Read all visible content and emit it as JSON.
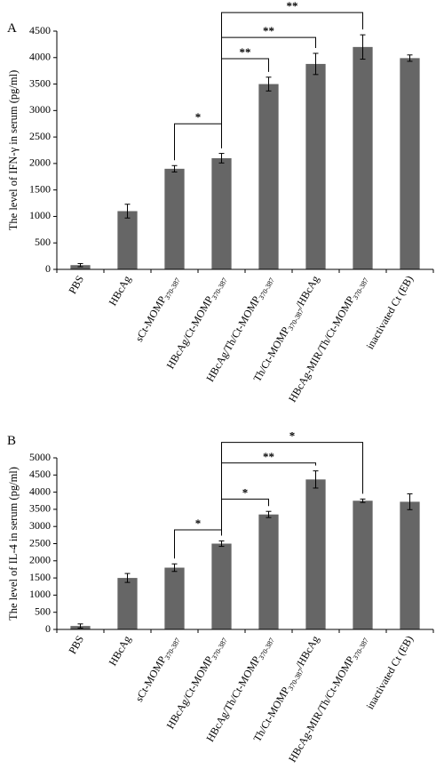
{
  "chart_data": [
    {
      "panel": "A",
      "type": "bar",
      "ylabel": "The level of IFN-γ in serum (pg/ml)",
      "ylim": [
        0,
        4500
      ],
      "yticks": [
        0,
        500,
        1000,
        1500,
        2000,
        2500,
        3000,
        3500,
        4000,
        4500
      ],
      "categories": [
        {
          "main": "PBS",
          "sub": ""
        },
        {
          "main": "HBcAg",
          "sub": ""
        },
        {
          "main": "sCt-MOMP",
          "sub": "370-387"
        },
        {
          "main": "HBcAg/Ct-MOMP",
          "sub": "370-387"
        },
        {
          "main": "HBcAg/Th/Ct-MOMP",
          "sub": "370-387"
        },
        {
          "main": "Th/Ct-MOMP",
          "sub": "370-387",
          "suffix": "/HBcAg"
        },
        {
          "main": "HBcAg-MIR/Th/Ct-MOMP",
          "sub": "370-387"
        },
        {
          "main": "inactivated Ct (EB)",
          "sub": ""
        }
      ],
      "values": [
        80,
        1100,
        1900,
        2100,
        3500,
        3880,
        4200,
        3990
      ],
      "errors": [
        30,
        130,
        60,
        90,
        130,
        200,
        230,
        60
      ],
      "significance": [
        {
          "from": 2,
          "to": 3,
          "label": "*",
          "y": 2750
        },
        {
          "from": 3,
          "to": 4,
          "label": "**",
          "y": 3980
        },
        {
          "from": 3,
          "to": 5,
          "label": "**",
          "y": 4380
        },
        {
          "from": 3,
          "to": 6,
          "label": "**",
          "y": 4850
        }
      ]
    },
    {
      "panel": "B",
      "type": "bar",
      "ylabel": "The level of IL-4 in serum (pg/ml)",
      "ylim": [
        0,
        5000
      ],
      "yticks": [
        0,
        500,
        1000,
        1500,
        2000,
        2500,
        3000,
        3500,
        4000,
        4500,
        5000
      ],
      "categories": [
        {
          "main": "PBS",
          "sub": ""
        },
        {
          "main": "HBcAg",
          "sub": ""
        },
        {
          "main": "sCt-MOMP",
          "sub": "370-387"
        },
        {
          "main": "HBcAg/Ct-MOMP",
          "sub": "370-387"
        },
        {
          "main": "HBcAg/Th/Ct-MOMP",
          "sub": "370-387"
        },
        {
          "main": "Th/Ct-MOMP",
          "sub": "370-387",
          "suffix": "/HBcAg"
        },
        {
          "main": "HBcAg-MIR/Th/Ct-MOMP",
          "sub": "370-387"
        },
        {
          "main": "inactivated Ct (EB)",
          "sub": ""
        }
      ],
      "values": [
        100,
        1500,
        1800,
        2500,
        3350,
        4370,
        3750,
        3720
      ],
      "errors": [
        60,
        130,
        110,
        80,
        90,
        250,
        50,
        230
      ],
      "significance": [
        {
          "from": 2,
          "to": 3,
          "label": "*",
          "y": 2900
        },
        {
          "from": 3,
          "to": 4,
          "label": "*",
          "y": 3800
        },
        {
          "from": 3,
          "to": 5,
          "label": "**",
          "y": 4850
        },
        {
          "from": 3,
          "to": 6,
          "label": "*",
          "y": 5450
        }
      ]
    }
  ]
}
